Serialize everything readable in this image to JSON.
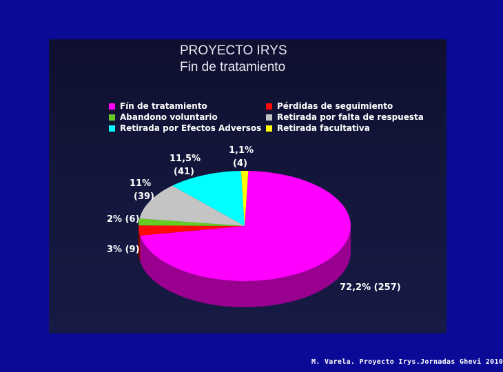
{
  "chart_data": {
    "type": "pie",
    "title": "PROYECTO IRYS",
    "subtitle": "Fin de tratamiento",
    "legend_position": "top",
    "slices": [
      {
        "name": "Fín de tratamiento",
        "value": 72.2,
        "count": 257,
        "label": "72,2% (257)",
        "color": "#ff00ff",
        "side": "#99008f"
      },
      {
        "name": "Pérdidas de seguimiento",
        "value": 3,
        "count": 9,
        "label": "3%  (9)",
        "color": "#ff0a0a",
        "side": "#990000"
      },
      {
        "name": "Abandono voluntario",
        "value": 2,
        "count": 6,
        "label": "2% (6)",
        "color": "#66cc22",
        "side": "#3d7a14"
      },
      {
        "name": "Retirada por falta de respuesta",
        "value": 11,
        "count": 39,
        "label_lines": [
          "11%",
          "(39)"
        ],
        "color": "#c4c4c4",
        "side": "#767676"
      },
      {
        "name": "Retirada por Efectos Adversos",
        "value": 11.5,
        "count": 41,
        "label_lines": [
          "11,5%",
          "(41)"
        ],
        "color": "#00ffff",
        "side": "#009999"
      },
      {
        "name": "Retirada facultativa",
        "value": 1.1,
        "count": 4,
        "label_lines": [
          "1,1%",
          "(4)"
        ],
        "color": "#ffff00",
        "side": "#999900"
      }
    ],
    "legend_order": [
      "Fín de tratamiento",
      "Pérdidas de seguimiento",
      "Abandono voluntario",
      "Retirada por falta de respuesta",
      "Retirada por Efectos Adversos",
      "Retirada facultativa"
    ]
  },
  "footer": "M. Varela. Proyecto Irys.Jornadas Ghevi 2010",
  "colors": {
    "background": "#0a0a96",
    "panel": "#14183e"
  }
}
